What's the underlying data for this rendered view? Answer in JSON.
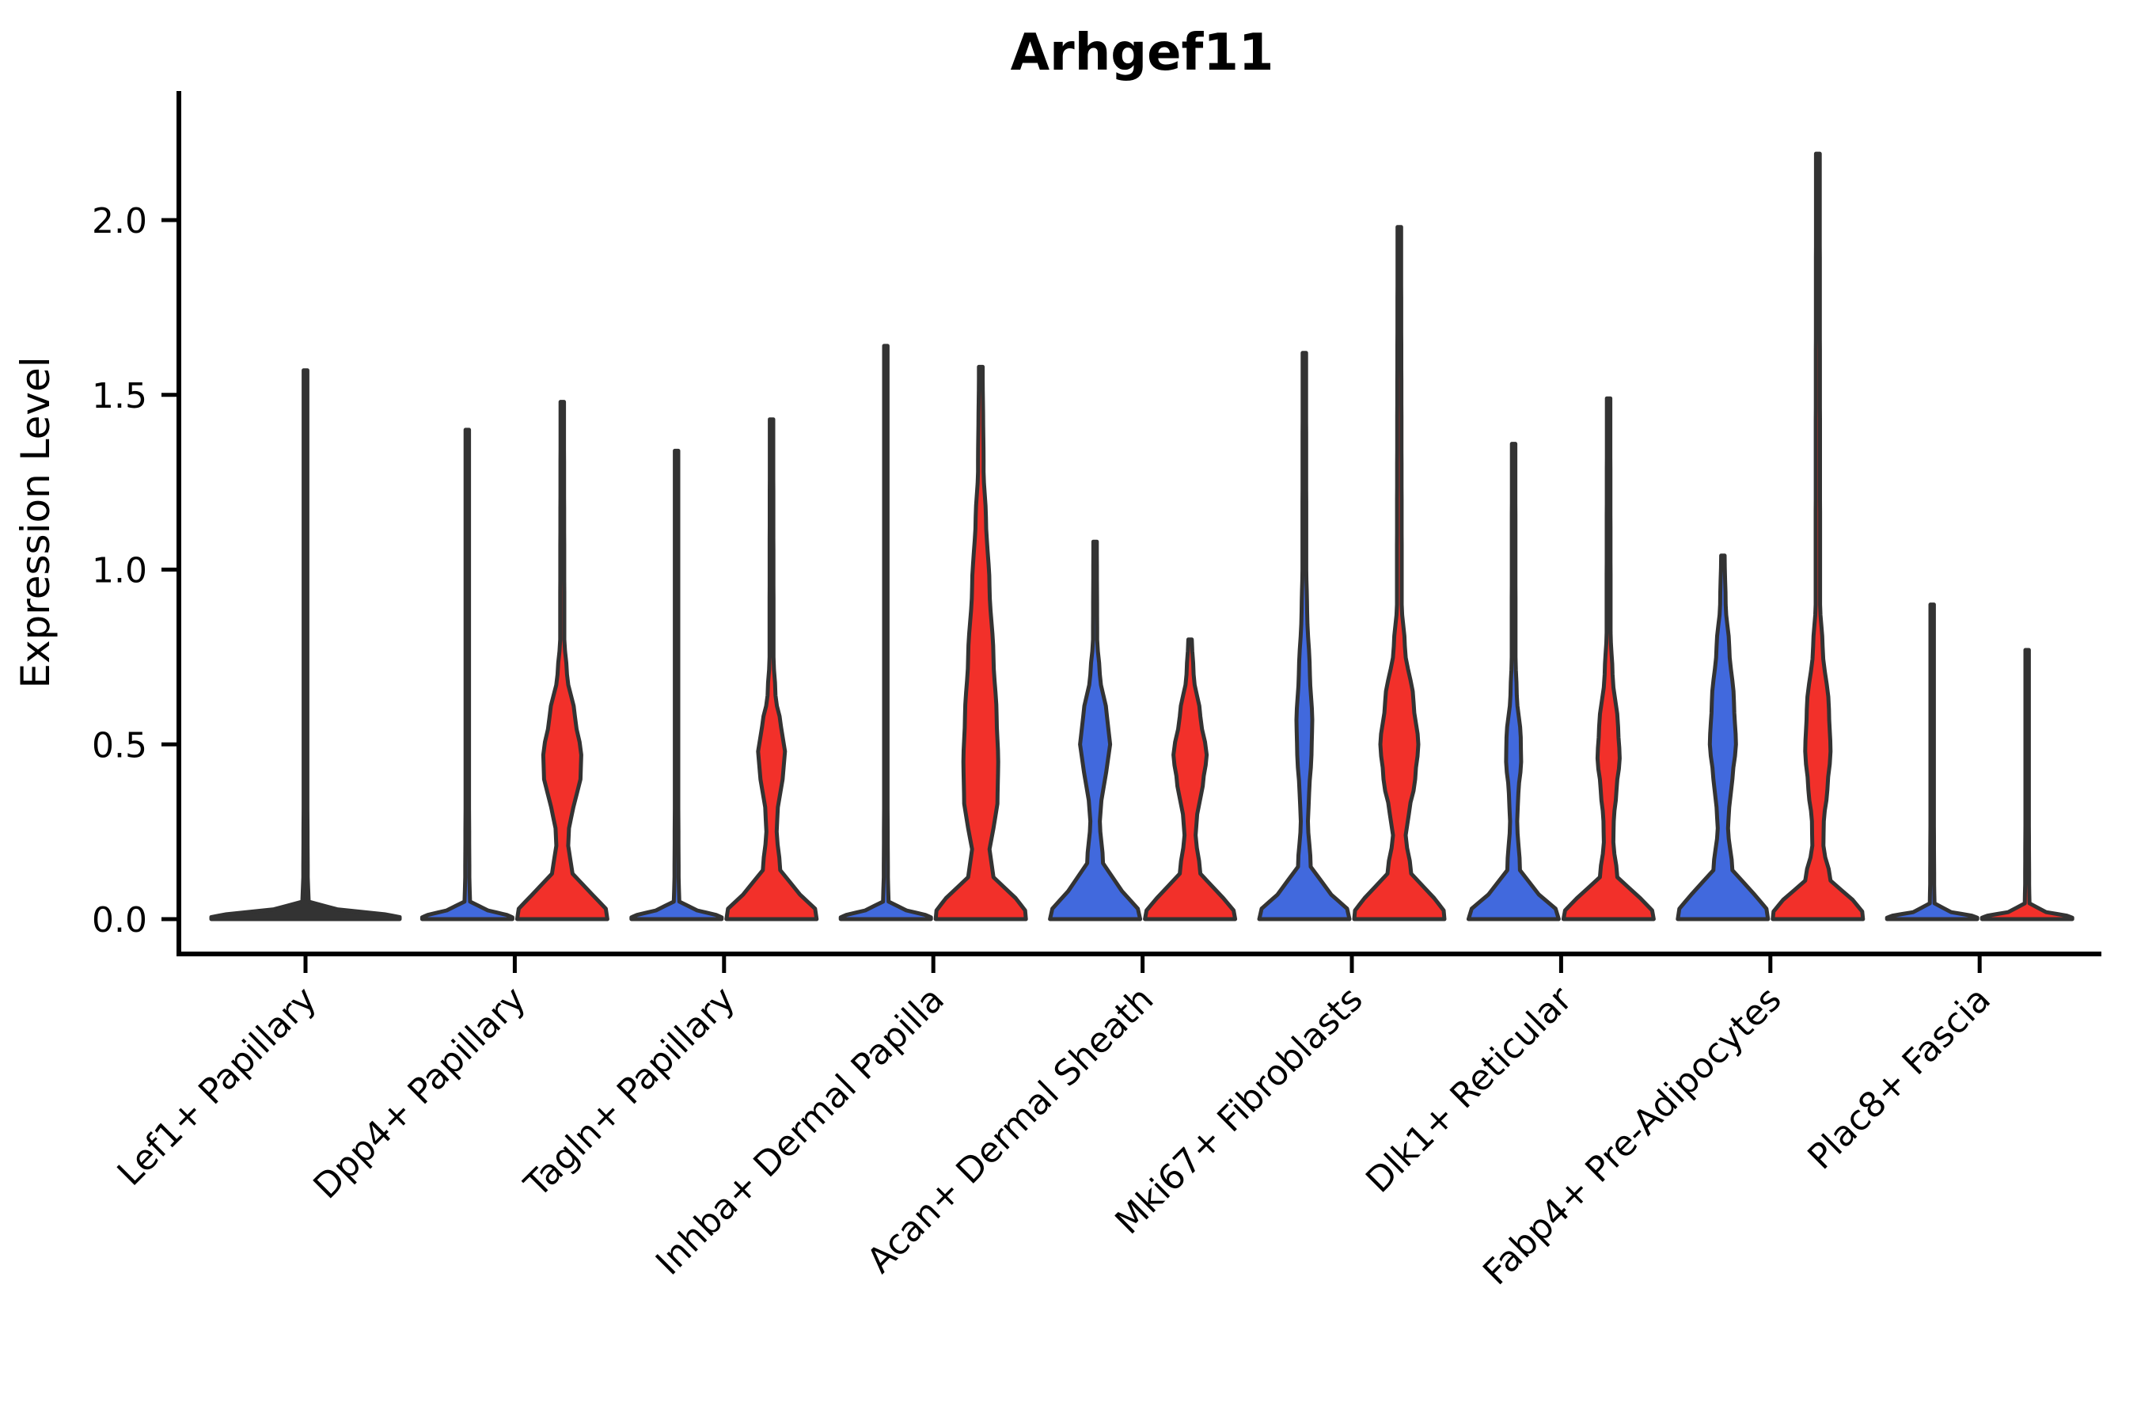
{
  "chart_data": {
    "type": "violin",
    "title": "Arhgef11",
    "xlabel": "",
    "ylabel": "Expression Level",
    "y_ticks": [
      "0.0",
      "0.5",
      "1.0",
      "1.5",
      "2.0"
    ],
    "y_tick_values": [
      0.0,
      0.5,
      1.0,
      1.5,
      2.0
    ],
    "ylim": [
      -0.1,
      2.37
    ],
    "grid": false,
    "legend": "none",
    "categories": [
      "Lef1+ Papillary",
      "Dpp4+ Papillary",
      "Tagln+ Papillary",
      "Inhba+ Dermal Papilla",
      "Acan+ Dermal Sheath",
      "Mki67+ Fibroblasts",
      "Dlk1+ Reticular",
      "Fabp4+ Pre-Adipocytes",
      "Plac8+ Fascia"
    ],
    "colors": {
      "blue": "#4169dd",
      "red": "#f2302a",
      "outline": "#333333",
      "axis": "#000000"
    },
    "violins": [
      {
        "category_index": 0,
        "side": "center",
        "color": "outline",
        "max": 1.57,
        "profile": [
          [
            1.57,
            2.4
          ],
          [
            0.35,
            2.4
          ],
          [
            0.12,
            2.8
          ],
          [
            0.05,
            4
          ],
          [
            0.028,
            40
          ],
          [
            0.014,
            100
          ],
          [
            0.006,
            119
          ],
          [
            0,
            119
          ]
        ]
      },
      {
        "category_index": 1,
        "side": "left",
        "color": "blue",
        "max": 1.4,
        "profile": [
          [
            1.4,
            2.2
          ],
          [
            0.35,
            2.2
          ],
          [
            0.12,
            2.6
          ],
          [
            0.05,
            3.5
          ],
          [
            0.025,
            26
          ],
          [
            0.012,
            50
          ],
          [
            0.005,
            57
          ],
          [
            0,
            57
          ]
        ]
      },
      {
        "category_index": 1,
        "side": "right",
        "color": "red",
        "max": 1.48,
        "profile": [
          [
            1.48,
            2.2
          ],
          [
            0.8,
            2.6
          ],
          [
            0.7,
            6
          ],
          [
            0.58,
            16
          ],
          [
            0.47,
            24
          ],
          [
            0.4,
            23
          ],
          [
            0.32,
            14
          ],
          [
            0.26,
            8.5
          ],
          [
            0.21,
            7.5
          ],
          [
            0.13,
            13
          ],
          [
            0.07,
            38
          ],
          [
            0.03,
            55
          ],
          [
            0,
            57
          ]
        ]
      },
      {
        "category_index": 2,
        "side": "left",
        "color": "blue",
        "max": 1.34,
        "profile": [
          [
            1.34,
            2.2
          ],
          [
            0.35,
            2.2
          ],
          [
            0.12,
            2.6
          ],
          [
            0.05,
            3.5
          ],
          [
            0.025,
            26
          ],
          [
            0.012,
            50
          ],
          [
            0.005,
            57
          ],
          [
            0,
            57
          ]
        ]
      },
      {
        "category_index": 2,
        "side": "right",
        "color": "red",
        "max": 1.43,
        "profile": [
          [
            1.43,
            2.2
          ],
          [
            0.75,
            2.5
          ],
          [
            0.64,
            5
          ],
          [
            0.55,
            12
          ],
          [
            0.48,
            17
          ],
          [
            0.4,
            14
          ],
          [
            0.32,
            8
          ],
          [
            0.25,
            6.5
          ],
          [
            0.14,
            11
          ],
          [
            0.07,
            36
          ],
          [
            0.03,
            55
          ],
          [
            0,
            57
          ]
        ]
      },
      {
        "category_index": 3,
        "side": "left",
        "color": "blue",
        "max": 1.64,
        "profile": [
          [
            1.64,
            2.2
          ],
          [
            0.35,
            2.2
          ],
          [
            0.12,
            2.6
          ],
          [
            0.05,
            3.5
          ],
          [
            0.025,
            26
          ],
          [
            0.012,
            50
          ],
          [
            0.005,
            57
          ],
          [
            0,
            57
          ]
        ]
      },
      {
        "category_index": 3,
        "side": "right",
        "color": "red",
        "max": 1.58,
        "profile": [
          [
            1.58,
            2.4
          ],
          [
            1.28,
            3.5
          ],
          [
            1.15,
            6.5
          ],
          [
            0.95,
            11
          ],
          [
            0.75,
            16
          ],
          [
            0.58,
            20
          ],
          [
            0.45,
            22
          ],
          [
            0.33,
            21
          ],
          [
            0.26,
            16
          ],
          [
            0.2,
            11
          ],
          [
            0.12,
            16
          ],
          [
            0.06,
            44
          ],
          [
            0.025,
            56
          ],
          [
            0,
            57
          ]
        ]
      },
      {
        "category_index": 4,
        "side": "left",
        "color": "blue",
        "max": 1.08,
        "profile": [
          [
            1.08,
            2.2
          ],
          [
            0.8,
            2.6
          ],
          [
            0.7,
            6
          ],
          [
            0.58,
            15
          ],
          [
            0.5,
            19
          ],
          [
            0.42,
            14
          ],
          [
            0.34,
            8
          ],
          [
            0.28,
            6
          ],
          [
            0.16,
            10
          ],
          [
            0.08,
            34
          ],
          [
            0.03,
            54
          ],
          [
            0,
            57
          ]
        ]
      },
      {
        "category_index": 4,
        "side": "right",
        "color": "red",
        "max": 0.8,
        "profile": [
          [
            0.8,
            2.2
          ],
          [
            0.7,
            4.5
          ],
          [
            0.58,
            13
          ],
          [
            0.47,
            21
          ],
          [
            0.38,
            16
          ],
          [
            0.3,
            9
          ],
          [
            0.24,
            7
          ],
          [
            0.13,
            13
          ],
          [
            0.06,
            42
          ],
          [
            0.025,
            55
          ],
          [
            0,
            57
          ]
        ]
      },
      {
        "category_index": 5,
        "side": "left",
        "color": "blue",
        "max": 1.62,
        "profile": [
          [
            1.62,
            2.2
          ],
          [
            1.0,
            2.4
          ],
          [
            0.88,
            3.5
          ],
          [
            0.7,
            7
          ],
          [
            0.57,
            10
          ],
          [
            0.47,
            9
          ],
          [
            0.36,
            6
          ],
          [
            0.28,
            4.5
          ],
          [
            0.15,
            8
          ],
          [
            0.07,
            34
          ],
          [
            0.03,
            54
          ],
          [
            0,
            57
          ]
        ]
      },
      {
        "category_index": 5,
        "side": "right",
        "color": "red",
        "max": 1.98,
        "profile": [
          [
            1.98,
            2.3
          ],
          [
            0.9,
            3
          ],
          [
            0.78,
            7
          ],
          [
            0.62,
            18
          ],
          [
            0.5,
            24
          ],
          [
            0.4,
            20
          ],
          [
            0.3,
            12
          ],
          [
            0.24,
            8
          ],
          [
            0.13,
            15
          ],
          [
            0.06,
            44
          ],
          [
            0.025,
            56
          ],
          [
            0,
            57
          ]
        ]
      },
      {
        "category_index": 6,
        "side": "left",
        "color": "blue",
        "max": 1.36,
        "profile": [
          [
            1.36,
            2.2
          ],
          [
            0.75,
            2.4
          ],
          [
            0.64,
            4
          ],
          [
            0.52,
            9
          ],
          [
            0.45,
            9.5
          ],
          [
            0.36,
            6
          ],
          [
            0.28,
            4.5
          ],
          [
            0.14,
            8
          ],
          [
            0.07,
            32
          ],
          [
            0.03,
            53
          ],
          [
            0,
            57
          ]
        ]
      },
      {
        "category_index": 6,
        "side": "right",
        "color": "red",
        "max": 1.49,
        "profile": [
          [
            1.49,
            2.2
          ],
          [
            0.82,
            2.5
          ],
          [
            0.7,
            5
          ],
          [
            0.55,
            12
          ],
          [
            0.46,
            14
          ],
          [
            0.37,
            10
          ],
          [
            0.28,
            6.5
          ],
          [
            0.22,
            6
          ],
          [
            0.12,
            11
          ],
          [
            0.06,
            40
          ],
          [
            0.025,
            55
          ],
          [
            0,
            57
          ]
        ]
      },
      {
        "category_index": 7,
        "side": "left",
        "color": "blue",
        "max": 1.04,
        "profile": [
          [
            1.04,
            2.2
          ],
          [
            0.9,
            3.5
          ],
          [
            0.78,
            8
          ],
          [
            0.62,
            14
          ],
          [
            0.5,
            16.5
          ],
          [
            0.4,
            12
          ],
          [
            0.32,
            8
          ],
          [
            0.26,
            6.5
          ],
          [
            0.14,
            12
          ],
          [
            0.07,
            40
          ],
          [
            0.03,
            55
          ],
          [
            0,
            57
          ]
        ]
      },
      {
        "category_index": 7,
        "side": "right",
        "color": "red",
        "max": 2.19,
        "profile": [
          [
            2.19,
            2.4
          ],
          [
            0.9,
            2.8
          ],
          [
            0.78,
            6
          ],
          [
            0.6,
            14
          ],
          [
            0.48,
            16
          ],
          [
            0.37,
            12
          ],
          [
            0.28,
            7.5
          ],
          [
            0.21,
            7
          ],
          [
            0.11,
            16
          ],
          [
            0.055,
            44
          ],
          [
            0.022,
            56
          ],
          [
            0,
            57
          ]
        ]
      },
      {
        "category_index": 8,
        "side": "left",
        "color": "blue",
        "max": 0.9,
        "profile": [
          [
            0.9,
            2.2
          ],
          [
            0.3,
            2.2
          ],
          [
            0.1,
            2.5
          ],
          [
            0.045,
            3
          ],
          [
            0.02,
            24
          ],
          [
            0.01,
            50
          ],
          [
            0.004,
            57
          ],
          [
            0,
            57
          ]
        ]
      },
      {
        "category_index": 8,
        "side": "right",
        "color": "red",
        "max": 0.77,
        "profile": [
          [
            0.77,
            2.2
          ],
          [
            0.3,
            2.2
          ],
          [
            0.1,
            2.5
          ],
          [
            0.045,
            3
          ],
          [
            0.02,
            24
          ],
          [
            0.01,
            50
          ],
          [
            0.004,
            57
          ],
          [
            0,
            57
          ]
        ]
      }
    ]
  }
}
